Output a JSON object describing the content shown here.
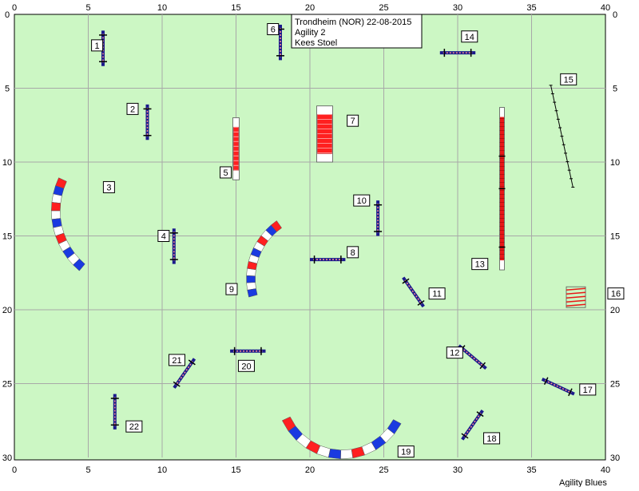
{
  "course": {
    "info_lines": [
      "Trondheim (NOR) 22-08-2015",
      "Agility 2",
      "Kees Stoel"
    ],
    "credit": "Agility Blues",
    "colors": {
      "field": "#ccf7c4",
      "grid": "#a8a8a8",
      "jump_bar": "#1a1a8c",
      "pole": "#000000",
      "tunnel_red": "#ff2020",
      "tunnel_blue": "#1a3ae0",
      "contact_red": "#e81818"
    }
  },
  "axes": {
    "x_ticks": [
      0,
      5,
      10,
      15,
      20,
      25,
      30,
      35,
      40
    ],
    "y_ticks": [
      0,
      5,
      10,
      15,
      20,
      25,
      30
    ]
  },
  "obstacles": [
    {
      "n": "1",
      "type": "jump",
      "x": 6,
      "y": 2.3,
      "len": 2.4,
      "angle": 90
    },
    {
      "n": "2",
      "type": "jump",
      "x": 9,
      "y": 7.3,
      "len": 2.4,
      "angle": 90
    },
    {
      "n": "3",
      "type": "tunnel",
      "cx": 7.8,
      "cy": 13.3,
      "r": 5.0,
      "start": 205,
      "end": 130
    },
    {
      "n": "4",
      "type": "jump",
      "x": 10.8,
      "y": 15.7,
      "len": 2.4,
      "angle": 90
    },
    {
      "n": "5",
      "type": "tunnel_straight",
      "x": 15,
      "y": 9.1,
      "len": 4.2,
      "angle": 90
    },
    {
      "n": "6",
      "type": "jump",
      "x": 18,
      "y": 1.9,
      "len": 2.4,
      "angle": 90
    },
    {
      "n": "7",
      "type": "tunnel_straight",
      "x": 21,
      "y": 8.1,
      "len": 3.8,
      "angle": 90
    },
    {
      "n": "8",
      "type": "jump",
      "x": 21.2,
      "y": 16.6,
      "len": 2.4,
      "angle": 0
    },
    {
      "n": "9",
      "type": "tunnel",
      "cx": 20.5,
      "cy": 17.9,
      "r": 4.5,
      "start": 235,
      "end": 165
    },
    {
      "n": "10",
      "type": "jump",
      "x": 24.6,
      "y": 13.8,
      "len": 2.4,
      "angle": 90
    },
    {
      "n": "11",
      "type": "jump",
      "x": 27,
      "y": 18.8,
      "len": 2.4,
      "angle": 55
    },
    {
      "n": "12",
      "type": "jump",
      "x": 31,
      "y": 23.2,
      "len": 2.4,
      "angle": 40
    },
    {
      "n": "13",
      "type": "dogwalk",
      "x": 33,
      "y": 11.8,
      "len": 11,
      "angle": 90
    },
    {
      "n": "14",
      "type": "jump",
      "x": 30,
      "y": 2.6,
      "len": 2.4,
      "angle": 0
    },
    {
      "n": "15",
      "type": "weave",
      "x1": 36.3,
      "y1": 4.8,
      "x2": 37.8,
      "y2": 11.7
    },
    {
      "n": "16",
      "type": "tire",
      "x": 38,
      "y": 19.2
    },
    {
      "n": "17",
      "type": "jump",
      "x": 36.8,
      "y": 25.2,
      "len": 2.4,
      "angle": 25
    },
    {
      "n": "18",
      "type": "jump",
      "x": 31,
      "y": 27.8,
      "len": 2.4,
      "angle": 125
    },
    {
      "n": "19",
      "type": "tunnel",
      "cx": 22.2,
      "cy": 25.6,
      "r": 4.2,
      "start": 155,
      "end": 28
    },
    {
      "n": "20",
      "type": "jump",
      "x": 15.8,
      "y": 22.8,
      "len": 2.4,
      "angle": 0
    },
    {
      "n": "21",
      "type": "jump",
      "x": 11.5,
      "y": 24.3,
      "len": 2.4,
      "angle": 125
    },
    {
      "n": "22",
      "type": "jump",
      "x": 6.8,
      "y": 26.9,
      "len": 2.4,
      "angle": 90
    }
  ],
  "labels": [
    {
      "n": "1",
      "x": 5.6,
      "y": 2.1
    },
    {
      "n": "2",
      "x": 8.0,
      "y": 6.4
    },
    {
      "n": "3",
      "x": 6.4,
      "y": 11.7
    },
    {
      "n": "4",
      "x": 10.1,
      "y": 15.0
    },
    {
      "n": "5",
      "x": 14.3,
      "y": 10.7
    },
    {
      "n": "6",
      "x": 17.5,
      "y": 1.0
    },
    {
      "n": "7",
      "x": 22.9,
      "y": 7.2
    },
    {
      "n": "8",
      "x": 22.9,
      "y": 16.1
    },
    {
      "n": "9",
      "x": 14.7,
      "y": 18.6
    },
    {
      "n": "10",
      "x": 23.5,
      "y": 12.6
    },
    {
      "n": "11",
      "x": 28.6,
      "y": 18.9
    },
    {
      "n": "12",
      "x": 29.8,
      "y": 22.9
    },
    {
      "n": "13",
      "x": 31.5,
      "y": 16.9
    },
    {
      "n": "14",
      "x": 30.8,
      "y": 1.5
    },
    {
      "n": "15",
      "x": 37.5,
      "y": 4.4
    },
    {
      "n": "16",
      "x": 40.7,
      "y": 18.9
    },
    {
      "n": "17",
      "x": 38.8,
      "y": 25.4
    },
    {
      "n": "18",
      "x": 32.3,
      "y": 28.7
    },
    {
      "n": "19",
      "x": 26.5,
      "y": 29.6
    },
    {
      "n": "20",
      "x": 15.7,
      "y": 23.8
    },
    {
      "n": "21",
      "x": 11.0,
      "y": 23.4
    },
    {
      "n": "22",
      "x": 8.1,
      "y": 27.9
    }
  ]
}
